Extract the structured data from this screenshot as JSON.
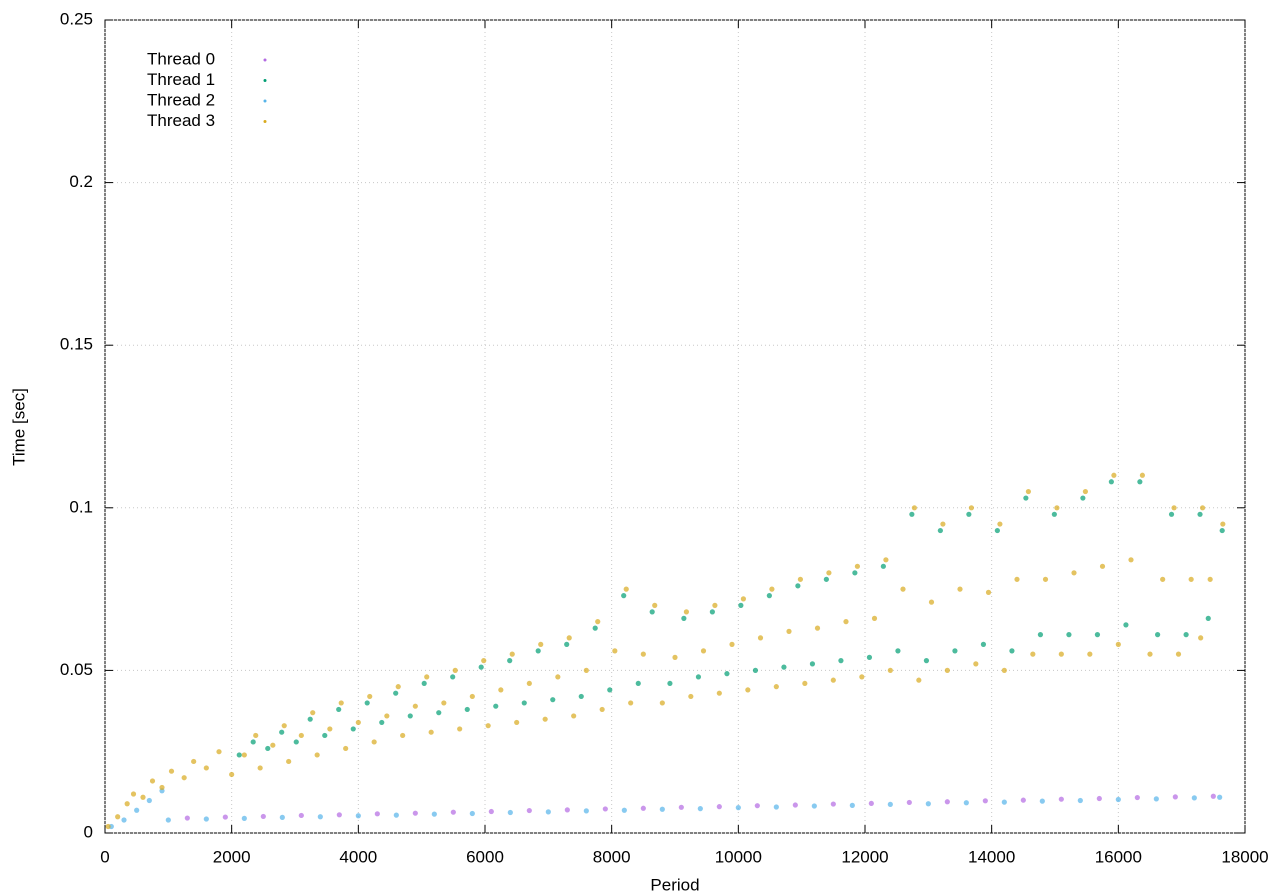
{
  "chart_data": {
    "type": "scatter",
    "xlabel": "Period",
    "ylabel": "Time [sec]",
    "xlim": [
      0,
      18000
    ],
    "ylim": [
      0,
      0.25
    ],
    "xticks": [
      0,
      2000,
      4000,
      6000,
      8000,
      10000,
      12000,
      14000,
      16000,
      18000
    ],
    "yticks": [
      0,
      0.05,
      0.1,
      0.15,
      0.2,
      0.25
    ],
    "grid": true,
    "legend": "top-left",
    "series": [
      {
        "name": "Thread 0",
        "color": "#b36ae2",
        "x": [
          1300,
          1900,
          2500,
          3100,
          3700,
          4300,
          4900,
          5500,
          6100,
          6700,
          7300,
          7900,
          8500,
          9100,
          9700,
          10300,
          10900,
          11500,
          12100,
          12700,
          13300,
          13900,
          14500,
          15100,
          15700,
          16300,
          16900,
          17500
        ],
        "y": [
          0.0046,
          0.0049,
          0.0051,
          0.0054,
          0.0056,
          0.0059,
          0.0061,
          0.0064,
          0.0066,
          0.0069,
          0.0071,
          0.0074,
          0.0076,
          0.0079,
          0.0081,
          0.0084,
          0.0086,
          0.0089,
          0.0091,
          0.0094,
          0.0096,
          0.0099,
          0.0101,
          0.0104,
          0.0106,
          0.0109,
          0.0111,
          0.0113
        ]
      },
      {
        "name": "Thread 1",
        "color": "#009e73",
        "x": [
          2120,
          2340,
          2570,
          2790,
          3020,
          3240,
          3470,
          3690,
          3920,
          4140,
          4370,
          4590,
          4820,
          5040,
          5270,
          5490,
          5720,
          5940,
          6170,
          6390,
          6620,
          6840,
          7070,
          7290,
          7520,
          7740,
          7970,
          8190,
          8420,
          8640,
          8920,
          9140,
          9370,
          9590,
          9820,
          10040,
          10270,
          10490,
          10720,
          10940,
          11170,
          11390,
          11620,
          11840,
          12070,
          12290,
          12520,
          12740,
          12970,
          13190,
          13420,
          13640,
          13870,
          14090,
          14320,
          14540,
          14770,
          14990,
          15220,
          15440,
          15670,
          15890,
          16120,
          16340,
          16620,
          16840,
          17070,
          17290,
          17420,
          17640
        ],
        "y": [
          0.024,
          0.028,
          0.026,
          0.031,
          0.028,
          0.035,
          0.03,
          0.038,
          0.032,
          0.04,
          0.034,
          0.043,
          0.036,
          0.046,
          0.037,
          0.048,
          0.038,
          0.051,
          0.039,
          0.053,
          0.04,
          0.056,
          0.041,
          0.058,
          0.042,
          0.063,
          0.044,
          0.073,
          0.046,
          0.068,
          0.046,
          0.066,
          0.048,
          0.068,
          0.049,
          0.07,
          0.05,
          0.073,
          0.051,
          0.076,
          0.052,
          0.078,
          0.053,
          0.08,
          0.054,
          0.082,
          0.056,
          0.098,
          0.053,
          0.093,
          0.056,
          0.098,
          0.058,
          0.093,
          0.056,
          0.103,
          0.061,
          0.098,
          0.061,
          0.103,
          0.061,
          0.108,
          0.064,
          0.108,
          0.061,
          0.098,
          0.061,
          0.098,
          0.066,
          0.093
        ]
      },
      {
        "name": "Thread 2",
        "color": "#56b4e9",
        "x": [
          100,
          300,
          500,
          700,
          900,
          1000,
          1600,
          2200,
          2800,
          3400,
          4000,
          4600,
          5200,
          5800,
          6400,
          7000,
          7600,
          8200,
          8800,
          9400,
          10000,
          10600,
          11200,
          11800,
          12400,
          13000,
          13600,
          14200,
          14800,
          15400,
          16000,
          16600,
          17200,
          17600
        ],
        "y": [
          0.002,
          0.004,
          0.007,
          0.01,
          0.013,
          0.004,
          0.0043,
          0.0045,
          0.0048,
          0.005,
          0.0053,
          0.0055,
          0.0058,
          0.006,
          0.0063,
          0.0065,
          0.0068,
          0.007,
          0.0073,
          0.0075,
          0.0078,
          0.008,
          0.0083,
          0.0085,
          0.0088,
          0.009,
          0.0093,
          0.0095,
          0.0098,
          0.01,
          0.0103,
          0.0105,
          0.0108,
          0.011
        ]
      },
      {
        "name": "Thread 3",
        "color": "#d9aa1e",
        "x": [
          50,
          200,
          350,
          450,
          600,
          750,
          900,
          1050,
          1250,
          1400,
          1600,
          1800,
          2000,
          2200,
          2380,
          2450,
          2650,
          2830,
          2900,
          3100,
          3280,
          3350,
          3550,
          3730,
          3800,
          4000,
          4180,
          4250,
          4450,
          4630,
          4700,
          4900,
          5080,
          5150,
          5350,
          5530,
          5600,
          5800,
          5980,
          6050,
          6250,
          6430,
          6500,
          6700,
          6880,
          6950,
          7150,
          7330,
          7400,
          7600,
          7780,
          7850,
          8050,
          8230,
          8300,
          8500,
          8680,
          8800,
          9000,
          9180,
          9250,
          9450,
          9630,
          9700,
          9900,
          10080,
          10150,
          10350,
          10530,
          10600,
          10800,
          10980,
          11050,
          11250,
          11430,
          11500,
          11700,
          11880,
          11950,
          12150,
          12330,
          12400,
          12600,
          12780,
          12850,
          13050,
          13230,
          13300,
          13500,
          13680,
          13750,
          13950,
          14130,
          14200,
          14400,
          14580,
          14650,
          14850,
          15030,
          15100,
          15300,
          15480,
          15550,
          15750,
          15930,
          16000,
          16200,
          16380,
          16500,
          16700,
          16880,
          16950,
          17150,
          17330,
          17300,
          17450,
          17650
        ],
        "y": [
          0.002,
          0.005,
          0.009,
          0.012,
          0.011,
          0.016,
          0.014,
          0.019,
          0.017,
          0.022,
          0.02,
          0.025,
          0.018,
          0.024,
          0.03,
          0.02,
          0.027,
          0.033,
          0.022,
          0.03,
          0.037,
          0.024,
          0.032,
          0.04,
          0.026,
          0.034,
          0.042,
          0.028,
          0.036,
          0.045,
          0.03,
          0.039,
          0.048,
          0.031,
          0.04,
          0.05,
          0.032,
          0.042,
          0.053,
          0.033,
          0.044,
          0.055,
          0.034,
          0.046,
          0.058,
          0.035,
          0.048,
          0.06,
          0.036,
          0.05,
          0.065,
          0.038,
          0.056,
          0.075,
          0.04,
          0.055,
          0.07,
          0.04,
          0.054,
          0.068,
          0.042,
          0.056,
          0.07,
          0.043,
          0.058,
          0.072,
          0.044,
          0.06,
          0.075,
          0.045,
          0.062,
          0.078,
          0.046,
          0.063,
          0.08,
          0.047,
          0.065,
          0.082,
          0.048,
          0.066,
          0.084,
          0.05,
          0.075,
          0.1,
          0.047,
          0.071,
          0.095,
          0.05,
          0.075,
          0.1,
          0.052,
          0.074,
          0.095,
          0.05,
          0.078,
          0.105,
          0.055,
          0.078,
          0.1,
          0.055,
          0.08,
          0.105,
          0.055,
          0.082,
          0.11,
          0.058,
          0.084,
          0.11,
          0.055,
          0.078,
          0.1,
          0.055,
          0.078,
          0.1,
          0.06,
          0.078,
          0.095
        ]
      }
    ]
  }
}
